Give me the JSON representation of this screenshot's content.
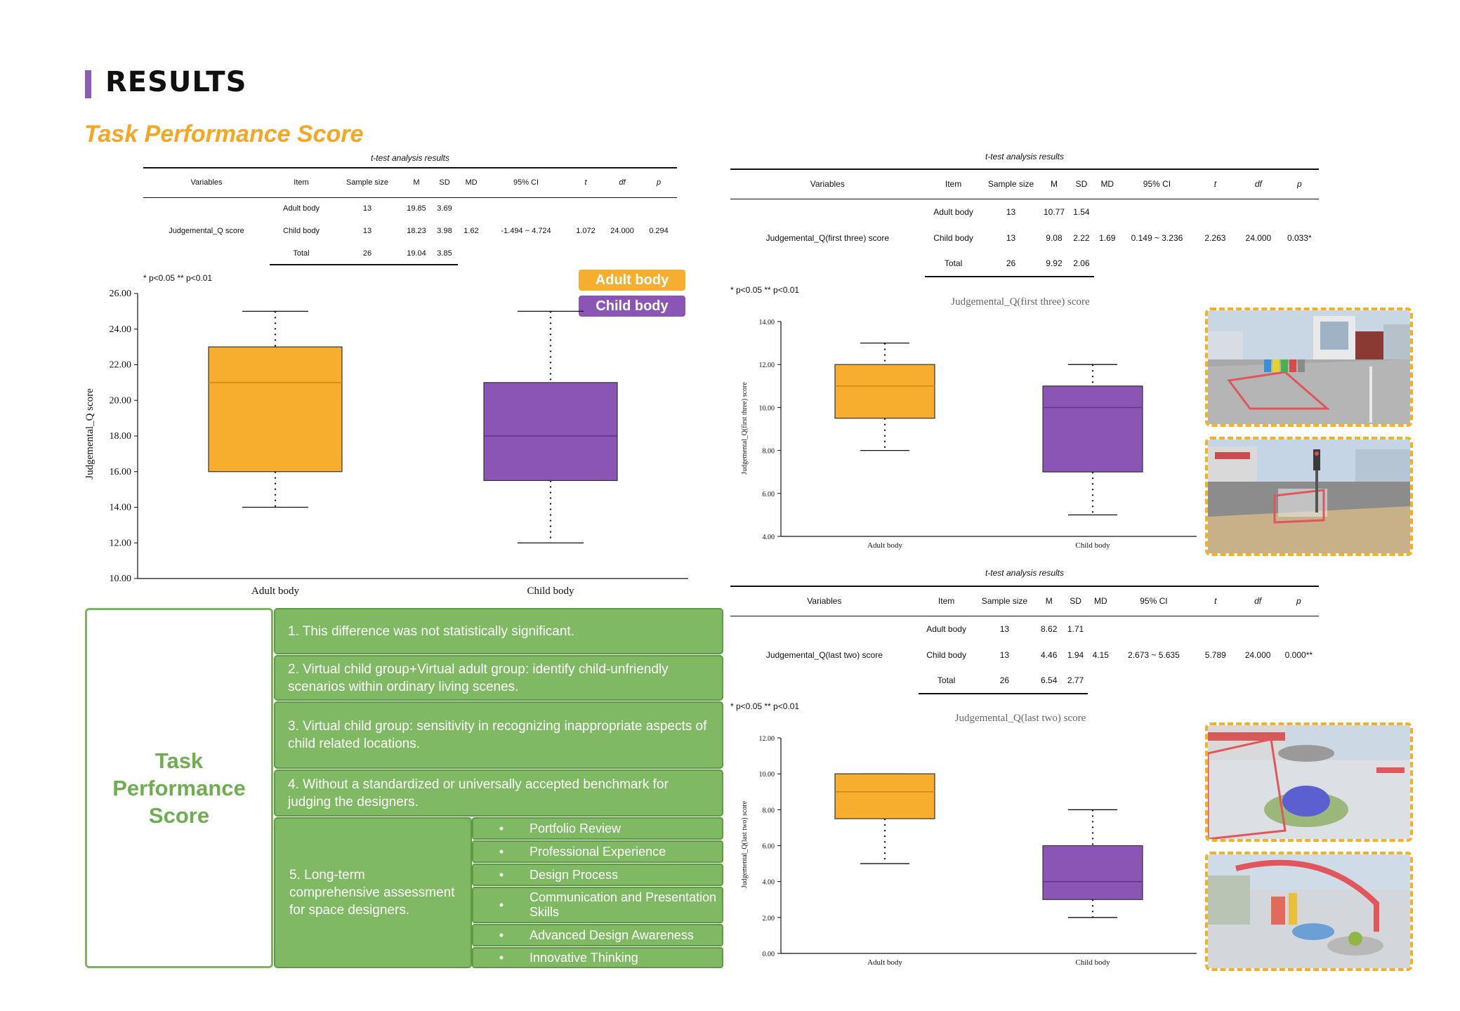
{
  "header": {
    "title": "RESULTS",
    "section_title": "Task Performance Score"
  },
  "legend": {
    "adult": "Adult body",
    "child": "Child body"
  },
  "colors": {
    "adult": "#f7ae2f",
    "child": "#8a55b5",
    "green": "#80b963",
    "accent_orange": "#f5a623",
    "accent_purple": "#8a5cb5"
  },
  "significance_note": "* p<0.05 ** p<0.01",
  "tables": [
    {
      "caption": "t-test analysis results",
      "headers": [
        "Variables",
        "Item",
        "Sample size",
        "M",
        "SD",
        "MD",
        "95% CI",
        "t",
        "df",
        "p"
      ],
      "variable": "Judgemental_Q score",
      "rows": [
        [
          "Adult body",
          "13",
          "19.85",
          "3.69"
        ],
        [
          "Child body",
          "13",
          "18.23",
          "3.98"
        ],
        [
          "Total",
          "26",
          "19.04",
          "3.85"
        ]
      ],
      "stats": {
        "md": "1.62",
        "ci": "-1.494 ~ 4.724",
        "t": "1.072",
        "df": "24.000",
        "p": "0.294"
      }
    },
    {
      "caption": "t-test analysis results",
      "headers": [
        "Variables",
        "Item",
        "Sample size",
        "M",
        "SD",
        "MD",
        "95% CI",
        "t",
        "df",
        "p"
      ],
      "variable": "Judgemental_Q(first three) score",
      "rows": [
        [
          "Adult body",
          "13",
          "10.77",
          "1.54"
        ],
        [
          "Child body",
          "13",
          "9.08",
          "2.22"
        ],
        [
          "Total",
          "26",
          "9.92",
          "2.06"
        ]
      ],
      "stats": {
        "md": "1.69",
        "ci": "0.149 ~ 3.236",
        "t": "2.263",
        "df": "24.000",
        "p": "0.033*"
      }
    },
    {
      "caption": "t-test analysis results",
      "headers": [
        "Variables",
        "Item",
        "Sample size",
        "M",
        "SD",
        "MD",
        "95% CI",
        "t",
        "df",
        "p"
      ],
      "variable": "Judgemental_Q(last two) score",
      "rows": [
        [
          "Adult body",
          "13",
          "8.62",
          "1.71"
        ],
        [
          "Child body",
          "13",
          "4.46",
          "1.94"
        ],
        [
          "Total",
          "26",
          "6.54",
          "2.77"
        ]
      ],
      "stats": {
        "md": "4.15",
        "ci": "2.673 ~ 5.635",
        "t": "5.789",
        "df": "24.000",
        "p": "0.000**"
      }
    }
  ],
  "chart_data": [
    {
      "type": "box",
      "title": "",
      "xlabel": "",
      "ylabel": "Judgemental_Q score",
      "ylim": [
        10,
        26
      ],
      "yticks": [
        "10.00",
        "12.00",
        "14.00",
        "16.00",
        "18.00",
        "20.00",
        "22.00",
        "24.00",
        "26.00"
      ],
      "categories": [
        "Adult body",
        "Child body"
      ],
      "boxes": [
        {
          "min": 14,
          "q1": 16,
          "median": 21,
          "q3": 23,
          "max": 25
        },
        {
          "min": 12,
          "q1": 15.5,
          "median": 18,
          "q3": 21,
          "max": 25
        }
      ]
    },
    {
      "type": "box",
      "title": "Judgemental_Q(first three) score",
      "xlabel": "",
      "ylabel": "Judgemental_Q(first three) score",
      "ylim": [
        4,
        14
      ],
      "yticks": [
        "4.00",
        "6.00",
        "8.00",
        "10.00",
        "12.00",
        "14.00"
      ],
      "categories": [
        "Adult body",
        "Child body"
      ],
      "boxes": [
        {
          "min": 8,
          "q1": 9.5,
          "median": 11,
          "q3": 12,
          "max": 13
        },
        {
          "min": 5,
          "q1": 7,
          "median": 10,
          "q3": 11,
          "max": 12
        }
      ]
    },
    {
      "type": "box",
      "title": "Judgemental_Q(last two) score",
      "xlabel": "",
      "ylabel": "Judgemental_Q(last two) score",
      "ylim": [
        0,
        12
      ],
      "yticks": [
        "0.00",
        "2.00",
        "4.00",
        "6.00",
        "8.00",
        "10.00",
        "12.00"
      ],
      "categories": [
        "Adult body",
        "Child body"
      ],
      "boxes": [
        {
          "min": 5,
          "q1": 7.5,
          "median": 9,
          "q3": 10,
          "max": 10
        },
        {
          "min": 2,
          "q1": 3,
          "median": 4,
          "q3": 6,
          "max": 8
        }
      ]
    }
  ],
  "summary": {
    "title_lines": [
      "Task",
      "Performance",
      "Score"
    ],
    "points": [
      "1. This difference was not statistically significant.",
      "2. Virtual child group+Virtual adult group: identify child-unfriendly scenarios within ordinary living scenes.",
      "3. Virtual child group: sensitivity in recognizing inappropriate aspects of child related locations.",
      "4. Without a standardized or universally accepted benchmark for judging the designers.",
      "5. Long-term comprehensive assessment for space designers."
    ],
    "bullet": "•",
    "sub_points": [
      "Portfolio Review",
      "Professional Experience",
      "Design Process",
      "Communication and Presentation Skills",
      "Advanced Design Awareness",
      "Innovative Thinking"
    ]
  }
}
